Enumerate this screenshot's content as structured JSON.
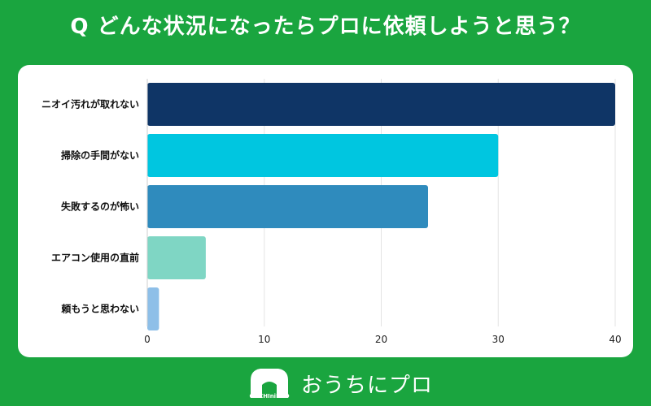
{
  "title": "Q どんな状況になったらプロに依頼しようと思う？",
  "chart_data": {
    "type": "bar",
    "orientation": "horizontal",
    "categories": [
      "ニオイ汚れが取れない",
      "掃除の手間がない",
      "失敗するのが怖い",
      "エアコン使用の直前",
      "頼もうと思わない"
    ],
    "values": [
      40,
      30,
      24,
      5,
      1
    ],
    "colors": [
      "#0f3566",
      "#00c6e0",
      "#2f8bbd",
      "#7fd6c4",
      "#8ebfe8"
    ],
    "xlim": [
      0,
      40
    ],
    "xticks": [
      0,
      10,
      20,
      30,
      40
    ],
    "grid": true
  },
  "logo": {
    "brand_text": "おうちにプロ",
    "mark_text": "OUCHIniPRO"
  }
}
